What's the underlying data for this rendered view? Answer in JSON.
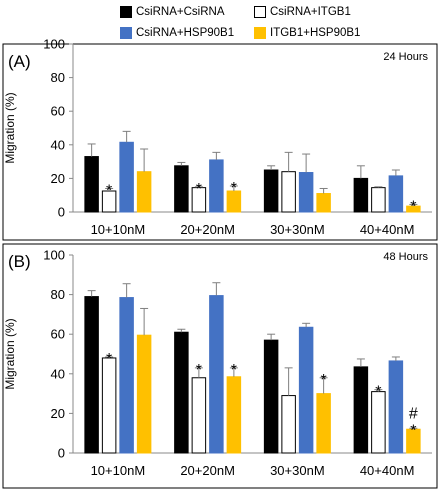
{
  "legend": [
    {
      "name": "CsiRNA+CsiRNA",
      "color": "#000000",
      "border": "#000000"
    },
    {
      "name": "CsiRNA+ITGB1",
      "color": "#ffffff",
      "border": "#000000"
    },
    {
      "name": "CsiRNA+HSP90B1",
      "color": "#4472c4",
      "border": "#4472c4"
    },
    {
      "name": "ITGB1+HSP90B1",
      "color": "#ffc000",
      "border": "#ffc000"
    }
  ],
  "chart_data": [
    {
      "type": "bar",
      "panel_label": "(A)",
      "time_label": "24 Hours",
      "ylabel": "Migration (%)",
      "ylim": [
        0,
        100
      ],
      "yticks": [
        "0",
        "20",
        "40",
        "60",
        "80",
        "100"
      ],
      "categories": [
        "10+10nM",
        "20+20nM",
        "30+30nM",
        "40+40nM"
      ],
      "series": [
        {
          "name": "CsiRNA+CsiRNA",
          "values": [
            33,
            27.5,
            25,
            20
          ],
          "errors": [
            7.5,
            2,
            2.5,
            7.5
          ]
        },
        {
          "name": "CsiRNA+ITGB1",
          "values": [
            12.5,
            14.5,
            24,
            14.5
          ],
          "errors": [
            1.5,
            0.5,
            11.5,
            0.5
          ]
        },
        {
          "name": "CsiRNA+HSP90B1",
          "values": [
            41.5,
            31,
            23.5,
            21.5
          ],
          "errors": [
            6.5,
            4.5,
            11,
            3.5
          ]
        },
        {
          "name": "ITGB1+HSP90B1",
          "values": [
            24,
            12.5,
            11,
            3.5
          ],
          "errors": [
            13.5,
            3,
            3,
            1
          ]
        }
      ],
      "annotations": [
        {
          "category": 0,
          "series": 1,
          "text": "*"
        },
        {
          "category": 1,
          "series": 1,
          "text": "*"
        },
        {
          "category": 1,
          "series": 3,
          "text": "*"
        },
        {
          "category": 3,
          "series": 3,
          "text": "*"
        }
      ]
    },
    {
      "type": "bar",
      "panel_label": "(B)",
      "time_label": "48 Hours",
      "ylabel": "Migration (%)",
      "ylim": [
        0,
        100
      ],
      "yticks": [
        "0",
        "20",
        "40",
        "60",
        "80",
        "100"
      ],
      "categories": [
        "10+10nM",
        "20+20nM",
        "30+30nM",
        "40+40nM"
      ],
      "series": [
        {
          "name": "CsiRNA+CsiRNA",
          "values": [
            79,
            61,
            57,
            43.5
          ],
          "errors": [
            3,
            1.5,
            3,
            4
          ]
        },
        {
          "name": "CsiRNA+ITGB1",
          "values": [
            48,
            38,
            29,
            31
          ],
          "errors": [
            0.5,
            5,
            14,
            1
          ]
        },
        {
          "name": "CsiRNA+HSP90B1",
          "values": [
            78.5,
            79.5,
            63.5,
            46.5
          ],
          "errors": [
            7,
            6.5,
            2,
            2
          ]
        },
        {
          "name": "ITGB1+HSP90B1",
          "values": [
            59.5,
            38.5,
            30,
            12
          ],
          "errors": [
            13.5,
            4.5,
            8,
            0.5
          ]
        }
      ],
      "annotations": [
        {
          "category": 0,
          "series": 1,
          "text": "*"
        },
        {
          "category": 1,
          "series": 1,
          "text": "*"
        },
        {
          "category": 1,
          "series": 3,
          "text": "*"
        },
        {
          "category": 2,
          "series": 3,
          "text": "*"
        },
        {
          "category": 3,
          "series": 1,
          "text": "*"
        },
        {
          "category": 3,
          "series": 3,
          "text": "#\n*"
        }
      ]
    }
  ]
}
